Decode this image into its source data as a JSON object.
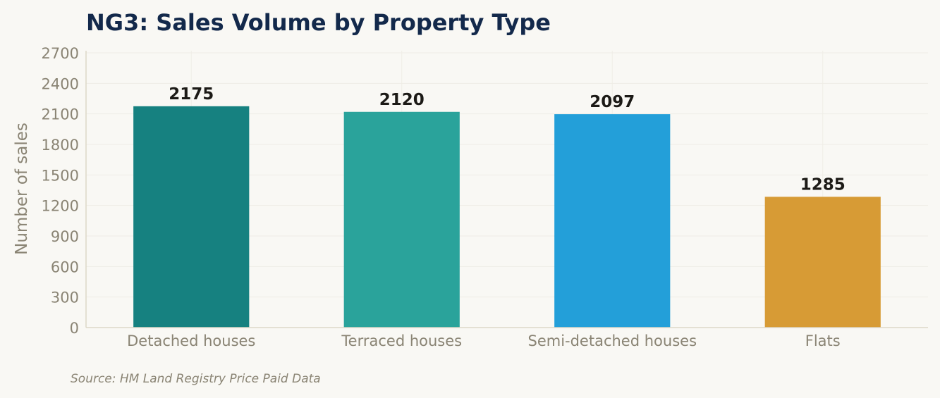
{
  "chart_data": {
    "type": "bar",
    "title": "NG3: Sales Volume by Property Type",
    "xlabel": "",
    "ylabel": "Number of sales",
    "categories": [
      "Detached houses",
      "Terraced houses",
      "Semi-detached houses",
      "Flats"
    ],
    "values": [
      2175,
      2120,
      2097,
      1285
    ],
    "value_labels": [
      "2175",
      "2120",
      "2097",
      "1285"
    ],
    "colors": [
      "#168180",
      "#2aa39b",
      "#239fd9",
      "#d79b35"
    ],
    "ylim": [
      0,
      2700
    ],
    "yticks": [
      0,
      300,
      600,
      900,
      1200,
      1500,
      1800,
      2100,
      2400,
      2700
    ],
    "ytick_labels": [
      "0",
      "300",
      "600",
      "900",
      "1200",
      "1500",
      "1800",
      "2100",
      "2400",
      "2700"
    ],
    "grid": true,
    "legend": "none"
  },
  "source_note": "Source: HM Land Registry Price Paid Data"
}
